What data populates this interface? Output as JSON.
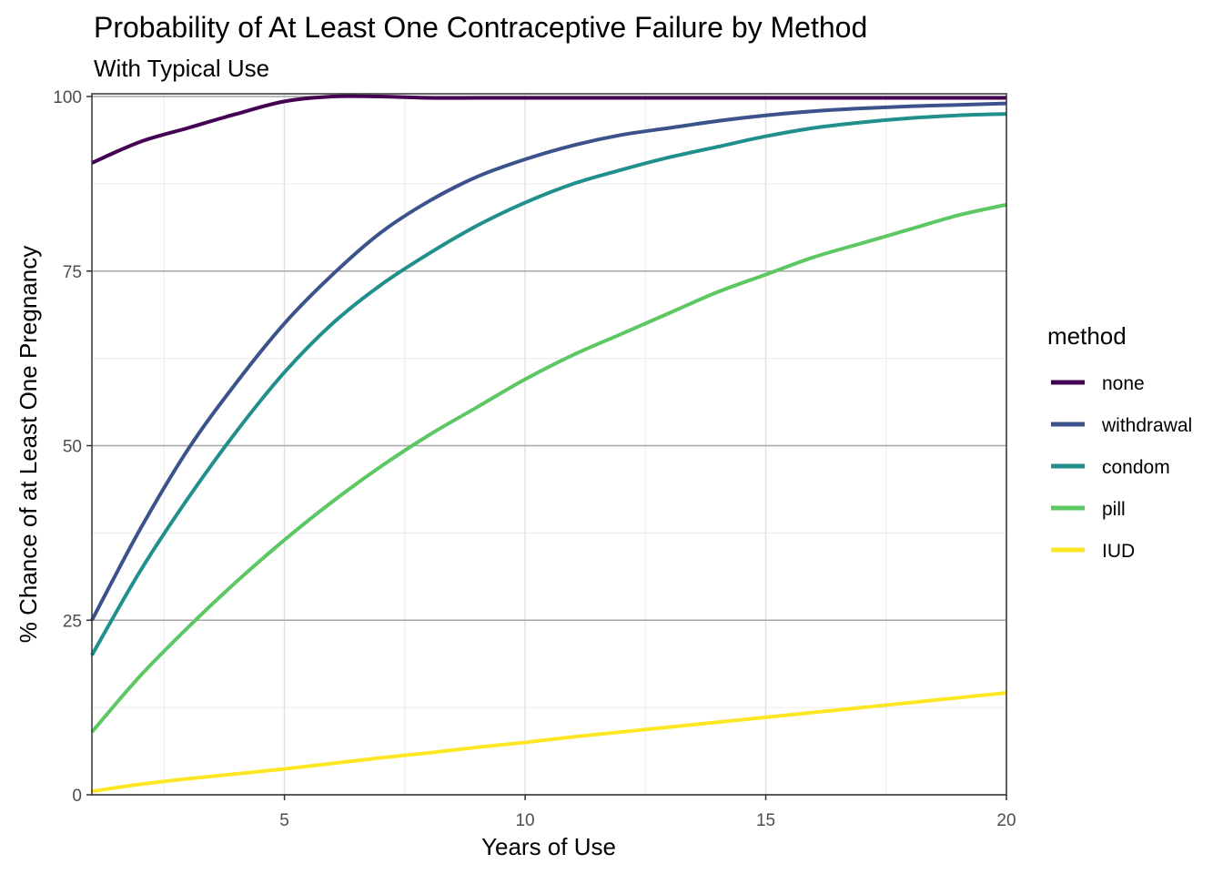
{
  "title": "Probability of At Least One Contraceptive Failure by Method",
  "subtitle": "With Typical Use",
  "chart_data": {
    "type": "line",
    "title": "Probability of At Least One Contraceptive Failure by Method",
    "subtitle": "With Typical Use",
    "xlabel": "Years of Use",
    "ylabel": "% Chance of at Least One Pregnancy",
    "xlim": [
      1,
      20
    ],
    "ylim": [
      0,
      100
    ],
    "x_ticks": [
      5,
      10,
      15,
      20
    ],
    "y_ticks": [
      0,
      25,
      50,
      75,
      100
    ],
    "grid": true,
    "legend": {
      "title": "method",
      "position": "right"
    },
    "x": [
      1,
      2,
      3,
      4,
      5,
      6,
      7,
      8,
      9,
      10,
      11,
      12,
      13,
      14,
      15,
      16,
      17,
      18,
      19,
      20
    ],
    "series": [
      {
        "name": "none",
        "color": "#440154",
        "values": [
          90.5,
          93.5,
          95.5,
          97.5,
          99.3,
          100,
          100,
          99.8,
          99.8,
          99.8,
          99.8,
          99.8,
          99.8,
          99.8,
          99.8,
          99.8,
          99.8,
          99.8,
          99.8,
          99.8
        ]
      },
      {
        "name": "withdrawal",
        "color": "#3B528B",
        "values": [
          25,
          38,
          49.5,
          59,
          67.5,
          74.5,
          80.5,
          85,
          88.5,
          91,
          93,
          94.5,
          95.5,
          96.5,
          97.3,
          97.9,
          98.3,
          98.6,
          98.8,
          99
        ]
      },
      {
        "name": "condom",
        "color": "#21908C",
        "values": [
          20,
          32,
          42.5,
          52,
          60.5,
          67.5,
          73,
          77.5,
          81.5,
          84.8,
          87.5,
          89.5,
          91.3,
          92.8,
          94.3,
          95.5,
          96.3,
          96.9,
          97.3,
          97.5
        ]
      },
      {
        "name": "pill",
        "color": "#5DC863",
        "values": [
          9,
          17,
          24,
          30.5,
          36.5,
          42,
          47,
          51.5,
          55.5,
          59.5,
          63,
          66,
          69,
          72,
          74.5,
          77,
          79,
          81,
          83,
          84.5
        ]
      },
      {
        "name": "IUD",
        "color": "#FDE725",
        "values": [
          0.5,
          1.5,
          2.3,
          3.0,
          3.7,
          4.5,
          5.3,
          6.0,
          6.8,
          7.5,
          8.3,
          9.0,
          9.7,
          10.4,
          11.1,
          11.8,
          12.5,
          13.2,
          13.9,
          14.6
        ]
      }
    ]
  }
}
